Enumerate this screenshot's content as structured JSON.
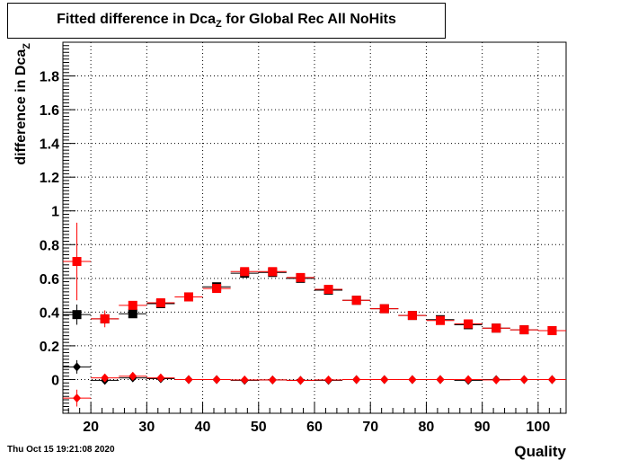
{
  "chart_data": {
    "type": "scatter",
    "title_main": "Fitted difference in Dca",
    "title_sub": "Z",
    "title_rest": " for Global Rec All NoHits",
    "ylabel_main": "difference in Dca",
    "ylabel_sub": "Z",
    "xlabel": "Quality",
    "xlim": [
      15,
      105
    ],
    "ylim": [
      -0.2,
      2.0
    ],
    "x_ticks": [
      20,
      30,
      40,
      50,
      60,
      70,
      80,
      90,
      100
    ],
    "y_ticks": [
      0,
      0.2,
      0.4,
      0.6,
      0.8,
      1,
      1.2,
      1.4,
      1.6,
      1.8
    ],
    "y_tick_labels": [
      "0",
      "0.2",
      "0.4",
      "0.6",
      "0.8",
      "1",
      "1.2",
      "1.4",
      "1.6",
      "1.8"
    ],
    "grid": true,
    "series": [
      {
        "marker": "square",
        "color": "#000000",
        "x": [
          17.5,
          22.5,
          27.5,
          32.5,
          37.5,
          42.5,
          47.5,
          52.5,
          57.5,
          62.5,
          67.5,
          72.5,
          77.5,
          82.5,
          87.5,
          92.5,
          97.5,
          102.5
        ],
        "y": [
          0.385,
          0.36,
          0.39,
          0.45,
          0.49,
          0.55,
          0.63,
          0.635,
          0.6,
          0.53,
          0.47,
          0.42,
          0.38,
          0.355,
          0.325,
          0.305,
          0.295,
          0.29
        ],
        "err": [
          0.06,
          0.03,
          0.015,
          0.01,
          0.008,
          0.008,
          0.008,
          0.008,
          0.008,
          0.008,
          0.008,
          0.008,
          0.008,
          0.008,
          0.008,
          0.008,
          0.008,
          0.008
        ]
      },
      {
        "marker": "square",
        "color": "#ff0000",
        "x": [
          17.5,
          22.5,
          27.5,
          32.5,
          37.5,
          42.5,
          47.5,
          52.5,
          57.5,
          62.5,
          67.5,
          72.5,
          77.5,
          82.5,
          87.5,
          92.5,
          97.5,
          102.5
        ],
        "y": [
          0.7,
          0.36,
          0.44,
          0.455,
          0.49,
          0.54,
          0.64,
          0.64,
          0.605,
          0.535,
          0.47,
          0.42,
          0.38,
          0.35,
          0.33,
          0.305,
          0.295,
          0.29
        ],
        "err": [
          0.23,
          0.05,
          0.025,
          0.012,
          0.01,
          0.01,
          0.01,
          0.01,
          0.01,
          0.01,
          0.01,
          0.01,
          0.01,
          0.01,
          0.01,
          0.01,
          0.01,
          0.01
        ]
      },
      {
        "marker": "diamond",
        "color": "#000000",
        "x": [
          17.5,
          22.5,
          27.5,
          32.5,
          37.5,
          42.5,
          47.5,
          52.5,
          57.5,
          62.5,
          67.5,
          72.5,
          77.5,
          82.5,
          87.5,
          92.5,
          97.5,
          102.5
        ],
        "y": [
          0.075,
          -0.005,
          0.01,
          0.005,
          0.0,
          0.0,
          -0.005,
          -0.002,
          -0.005,
          -0.005,
          0.0,
          0.0,
          0.0,
          0.0,
          -0.005,
          0.0,
          0.0,
          0.0
        ],
        "err": [
          0.04,
          0.015,
          0.01,
          0.006,
          0.004,
          0.004,
          0.004,
          0.004,
          0.004,
          0.004,
          0.004,
          0.004,
          0.004,
          0.004,
          0.004,
          0.004,
          0.004,
          0.004
        ]
      },
      {
        "marker": "diamond",
        "color": "#ff0000",
        "x": [
          17.5,
          22.5,
          27.5,
          32.5,
          37.5,
          42.5,
          47.5,
          52.5,
          57.5,
          62.5,
          67.5,
          72.5,
          77.5,
          82.5,
          87.5,
          92.5,
          97.5,
          102.5
        ],
        "y": [
          -0.11,
          0.01,
          0.02,
          0.01,
          0.0,
          0.0,
          -0.002,
          -0.002,
          -0.005,
          -0.002,
          0.0,
          0.0,
          0.0,
          0.0,
          0.0,
          -0.002,
          0.0,
          0.0
        ],
        "err": [
          0.05,
          0.02,
          0.012,
          0.006,
          0.004,
          0.004,
          0.004,
          0.004,
          0.004,
          0.004,
          0.004,
          0.004,
          0.004,
          0.004,
          0.004,
          0.004,
          0.004,
          0.004
        ]
      }
    ]
  },
  "timestamp": "Thu Oct 15 19:21:08 2020"
}
